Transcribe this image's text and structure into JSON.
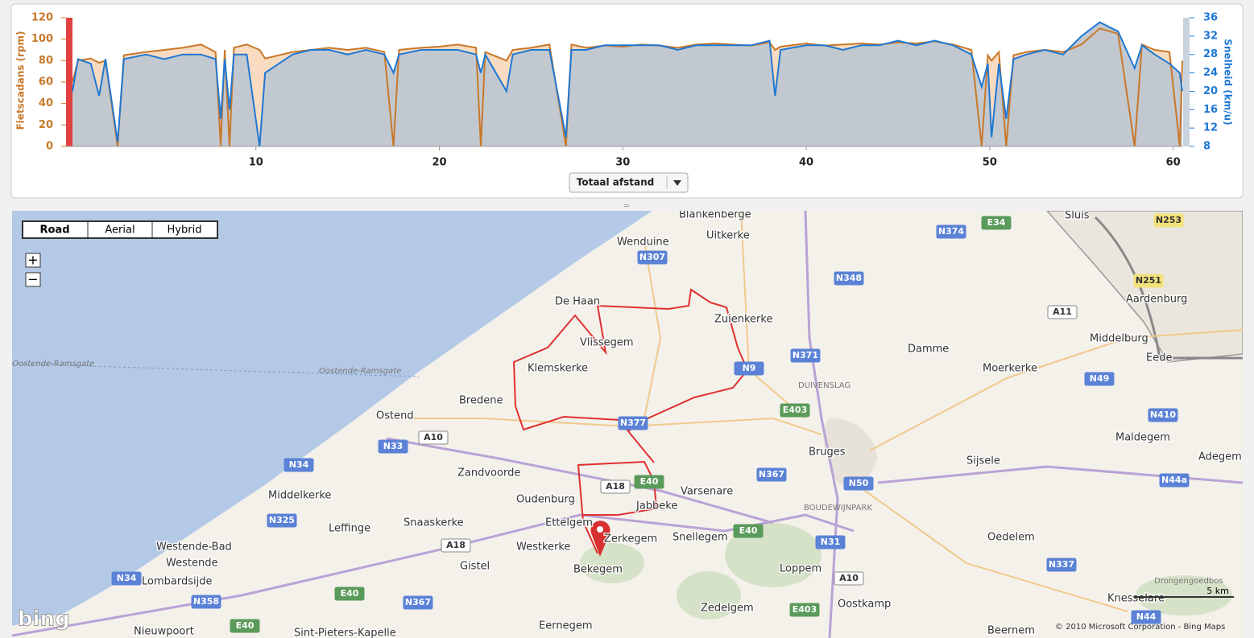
{
  "chart_data": {
    "type": "area",
    "x_label": "Totaal afstand",
    "y_label": "Fietscadans (rpm)",
    "y2_label": "Snelheid (km/u)",
    "x": [
      0,
      0.3,
      1,
      1.45,
      1.8,
      2.46,
      2.8,
      4,
      5,
      6,
      7,
      7.8,
      8.08,
      8.3,
      8.56,
      8.8,
      9.5,
      10.2,
      10.5,
      12,
      13,
      14,
      15,
      16,
      17,
      17.5,
      17.8,
      19,
      20,
      21,
      22,
      22.26,
      22.5,
      23.66,
      24,
      25,
      26,
      26.9,
      27.2,
      28,
      29,
      30,
      31,
      32,
      33,
      34,
      35,
      36,
      37,
      38,
      38.3,
      38.6,
      40,
      41,
      42,
      43,
      44,
      45,
      46,
      47,
      48,
      49,
      49.56,
      49.9,
      50.1,
      50.5,
      50.9,
      51.3,
      52,
      53,
      54,
      55,
      56,
      57,
      57.9,
      58.3,
      59,
      59.8,
      60.36,
      60.5
    ],
    "xlim": [
      0,
      60.5
    ],
    "xticks": [
      10,
      20,
      30,
      40,
      50,
      60
    ],
    "ylim": [
      0,
      120
    ],
    "yticks": [
      0,
      20,
      40,
      60,
      80,
      100,
      120
    ],
    "y2lim": [
      8,
      36
    ],
    "y2ticks": [
      8,
      12,
      16,
      20,
      24,
      28,
      32,
      36
    ],
    "series": [
      {
        "color": "#c8782a",
        "fill": "#f8dbc0",
        "values": [
          60,
          80,
          82,
          78,
          80,
          0,
          85,
          88,
          90,
          92,
          95,
          88,
          0,
          90,
          0,
          92,
          95,
          90,
          82,
          88,
          90,
          92,
          90,
          92,
          88,
          0,
          90,
          92,
          93,
          95,
          92,
          0,
          88,
          80,
          90,
          92,
          95,
          0,
          95,
          92,
          94,
          93,
          95,
          94,
          92,
          95,
          96,
          95,
          94,
          97,
          90,
          93,
          96,
          94,
          95,
          96,
          95,
          97,
          96,
          98,
          95,
          90,
          0,
          85,
          80,
          88,
          0,
          85,
          88,
          90,
          88,
          95,
          110,
          105,
          0,
          95,
          90,
          88,
          0,
          80
        ]
      },
      {
        "color": "#1f78d4",
        "fill": "#c2c8cf",
        "axis": "y2",
        "values": [
          20,
          27,
          26,
          19,
          27,
          9,
          27,
          28,
          27,
          28,
          28,
          27,
          14,
          27,
          16,
          28,
          28,
          8,
          24,
          28,
          29,
          29,
          28,
          29,
          28,
          24,
          28,
          29,
          29,
          29,
          28,
          24,
          28,
          20,
          28,
          29,
          29,
          10,
          29,
          29,
          30,
          30,
          30,
          30,
          29,
          30,
          30,
          30,
          30,
          31,
          19,
          29,
          30,
          30,
          29,
          30,
          30,
          31,
          30,
          31,
          30,
          28,
          21,
          26,
          10,
          26,
          14,
          27,
          28,
          29,
          28,
          32,
          35,
          33,
          25,
          30,
          28,
          26,
          24,
          20
        ]
      }
    ]
  },
  "map": {
    "types": [
      "Road",
      "Aerial",
      "Hybrid"
    ],
    "zoom_in": "+",
    "zoom_out": "−",
    "places": [
      "Blankenberge",
      "Uitkerke",
      "Wenduine",
      "De Haan",
      "Vlissegem",
      "Zuienkerke",
      "Klemskerke",
      "Bredene",
      "Ostend",
      "Zandvoorde",
      "Oudenburg",
      "Jabbeke",
      "Varsenare",
      "Bruges",
      "Damme",
      "Moerkerke",
      "Sijsele",
      "Maldegem",
      "Adegem",
      "Aardenburg",
      "Middelburg",
      "Eede",
      "Sluis",
      "Middelkerke",
      "Leffinge",
      "Snaaskerke",
      "Westende-Bad",
      "Westende",
      "Lombardsijde",
      "Gistel",
      "Westkerke",
      "Ettelgem",
      "Zerkegem",
      "Bekegem",
      "Snellegem",
      "Loppem",
      "Zedelgem",
      "Oostkamp",
      "Oedelem",
      "Eernegem",
      "Nieuwpoort",
      "Sint-Pieters-Kapelle",
      "Beernem",
      "Knesselare"
    ],
    "minor_places": [
      "DUIVENSLAG",
      "BOUDEWIJNPARK",
      "Drongengoedbos",
      "Oostende-Ramsgate",
      "Oostende-Ramsgate"
    ],
    "roads": [
      "N307",
      "N374",
      "E34",
      "N253",
      "N348",
      "N251",
      "A11",
      "N371",
      "N9",
      "E403",
      "N49",
      "N410",
      "N377",
      "A10",
      "N33",
      "N34",
      "N367",
      "A18",
      "E40",
      "N50",
      "N44a",
      "N325",
      "A18",
      "E40",
      "N31",
      "A10",
      "N337",
      "N34",
      "N358",
      "E40",
      "N367",
      "E403",
      "N44",
      "E40"
    ],
    "scale": "5 km",
    "copyright": "© 2010 Microsoft Corporation - Bing Maps",
    "logo": "bing"
  }
}
